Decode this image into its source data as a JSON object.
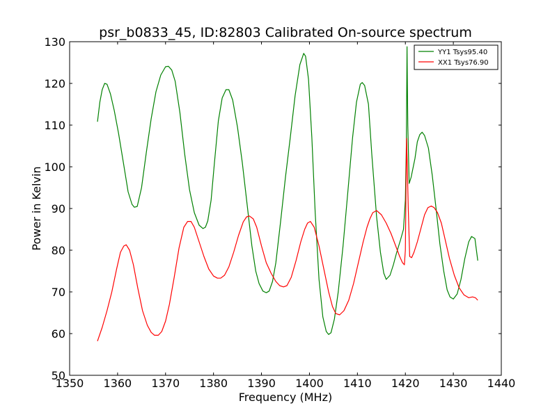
{
  "chart_data": {
    "type": "line",
    "title": "psr_b0833_45, ID:82803 Calibrated On-source spectrum",
    "xlabel": "Frequency (MHz)",
    "ylabel": "Power in Kelvin",
    "xlim": [
      1350,
      1440
    ],
    "ylim": [
      50,
      130
    ],
    "xticks": [
      1350,
      1360,
      1370,
      1380,
      1390,
      1400,
      1410,
      1420,
      1430,
      1440
    ],
    "yticks": [
      50,
      60,
      70,
      80,
      90,
      100,
      110,
      120,
      130
    ],
    "grid": false,
    "legend_position": "top-right",
    "series": [
      {
        "name": "YY1 Tsys95.40",
        "color": "#008000",
        "x": [
          1355.8,
          1356.3,
          1356.8,
          1357.3,
          1357.8,
          1358.5,
          1359.3,
          1360.2,
          1361.2,
          1362.2,
          1363.0,
          1363.5,
          1364.1,
          1365.0,
          1366.0,
          1367.0,
          1368.0,
          1369.0,
          1370.0,
          1370.6,
          1371.3,
          1372.0,
          1373.0,
          1374.0,
          1375.0,
          1376.0,
          1377.0,
          1377.8,
          1378.3,
          1378.8,
          1379.5,
          1380.2,
          1381.0,
          1381.8,
          1382.6,
          1383.2,
          1384.0,
          1385.0,
          1386.0,
          1387.0,
          1388.0,
          1388.8,
          1389.5,
          1390.3,
          1391.0,
          1391.6,
          1392.3,
          1393.0,
          1394.0,
          1395.0,
          1396.0,
          1397.0,
          1398.0,
          1398.8,
          1399.2,
          1399.8,
          1400.5,
          1401.2,
          1402.0,
          1402.8,
          1403.5,
          1404.0,
          1404.5,
          1405.2,
          1406.0,
          1407.0,
          1408.0,
          1409.0,
          1409.8,
          1410.6,
          1411.0,
          1411.5,
          1412.3,
          1413.0,
          1414.0,
          1414.8,
          1415.5,
          1416.0,
          1416.8,
          1417.5,
          1418.2,
          1419.0,
          1419.6,
          1420.0,
          1420.2,
          1420.35,
          1420.5,
          1420.8,
          1421.2,
          1422.0,
          1422.5,
          1423.0,
          1423.5,
          1424.0,
          1424.8,
          1425.6,
          1426.4,
          1427.2,
          1428.0,
          1428.7,
          1429.3,
          1430.0,
          1430.8,
          1431.6,
          1432.4,
          1433.2,
          1433.8,
          1434.5,
          1435.1
        ],
        "y": [
          110.8,
          115.5,
          118.5,
          120.0,
          119.8,
          117.5,
          113.5,
          108.0,
          101.0,
          94.0,
          91.0,
          90.3,
          90.5,
          95.0,
          103.5,
          111.5,
          118.0,
          122.0,
          124.0,
          124.1,
          123.2,
          120.5,
          113.0,
          103.0,
          94.5,
          89.0,
          86.0,
          85.2,
          85.5,
          87.0,
          92.0,
          101.0,
          111.0,
          116.5,
          118.5,
          118.5,
          116.0,
          109.5,
          101.0,
          91.0,
          81.0,
          75.0,
          72.0,
          70.2,
          69.8,
          70.2,
          72.5,
          77.0,
          87.0,
          97.5,
          107.0,
          117.0,
          124.5,
          127.2,
          126.5,
          121.0,
          107.0,
          89.0,
          73.0,
          64.0,
          60.5,
          59.8,
          60.2,
          63.5,
          70.0,
          81.0,
          94.0,
          107.0,
          115.5,
          119.8,
          120.2,
          119.5,
          115.0,
          103.0,
          88.0,
          79.5,
          74.5,
          73.0,
          74.0,
          76.5,
          79.5,
          82.5,
          85.0,
          92.0,
          105.0,
          128.8,
          110.0,
          96.0,
          97.5,
          102.0,
          106.0,
          107.7,
          108.3,
          107.5,
          104.5,
          98.0,
          90.0,
          81.5,
          75.0,
          70.5,
          68.8,
          68.3,
          69.5,
          73.0,
          78.0,
          82.0,
          83.3,
          82.8,
          77.5
        ]
      },
      {
        "name": "XX1 Tsys76.90",
        "color": "#ff0000",
        "x": [
          1355.8,
          1356.8,
          1357.8,
          1358.8,
          1359.8,
          1360.6,
          1361.3,
          1361.8,
          1362.5,
          1363.3,
          1364.2,
          1365.2,
          1366.2,
          1367.0,
          1367.7,
          1368.5,
          1369.2,
          1370.0,
          1370.8,
          1371.8,
          1372.8,
          1373.8,
          1374.6,
          1375.3,
          1376.0,
          1377.0,
          1378.0,
          1379.0,
          1380.0,
          1380.8,
          1381.5,
          1382.3,
          1383.2,
          1384.2,
          1385.2,
          1386.2,
          1386.9,
          1387.5,
          1388.3,
          1389.0,
          1390.0,
          1391.0,
          1392.0,
          1393.0,
          1393.8,
          1394.6,
          1395.3,
          1396.2,
          1397.2,
          1398.2,
          1399.0,
          1399.6,
          1400.2,
          1401.0,
          1402.0,
          1403.0,
          1404.0,
          1404.8,
          1405.5,
          1406.3,
          1407.2,
          1408.2,
          1409.2,
          1410.2,
          1411.2,
          1412.0,
          1412.6,
          1413.2,
          1414.0,
          1415.0,
          1416.0,
          1417.0,
          1418.0,
          1418.8,
          1419.4,
          1419.8,
          1420.0,
          1420.25,
          1420.4,
          1420.6,
          1420.9,
          1421.3,
          1421.8,
          1422.5,
          1423.3,
          1424.0,
          1424.7,
          1425.4,
          1426.0,
          1426.7,
          1427.5,
          1428.3,
          1429.2,
          1430.2,
          1431.2,
          1432.2,
          1433.2,
          1434.0,
          1434.6,
          1435.1
        ],
        "y": [
          58.2,
          61.5,
          65.5,
          70.0,
          75.5,
          79.5,
          81.0,
          81.3,
          80.0,
          76.5,
          71.0,
          65.5,
          62.0,
          60.3,
          59.6,
          59.6,
          60.5,
          63.0,
          67.0,
          73.5,
          80.5,
          85.5,
          86.9,
          86.9,
          85.5,
          82.0,
          78.5,
          75.5,
          73.8,
          73.3,
          73.3,
          74.0,
          76.0,
          79.5,
          83.5,
          86.8,
          88.0,
          88.2,
          87.5,
          85.5,
          81.0,
          77.0,
          74.5,
          72.5,
          71.5,
          71.2,
          71.5,
          73.5,
          77.5,
          82.0,
          85.0,
          86.5,
          86.9,
          85.5,
          81.0,
          75.5,
          70.0,
          66.5,
          64.8,
          64.5,
          65.5,
          68.0,
          72.0,
          77.0,
          82.0,
          85.5,
          87.5,
          89.0,
          89.5,
          88.5,
          86.5,
          84.0,
          81.0,
          78.5,
          77.0,
          76.5,
          80.0,
          106.8,
          100.0,
          90.0,
          78.5,
          78.2,
          79.5,
          82.0,
          85.5,
          88.5,
          90.2,
          90.6,
          90.2,
          89.0,
          86.5,
          82.5,
          78.0,
          74.0,
          71.0,
          69.3,
          68.6,
          68.8,
          68.6,
          68.0
        ]
      }
    ]
  }
}
